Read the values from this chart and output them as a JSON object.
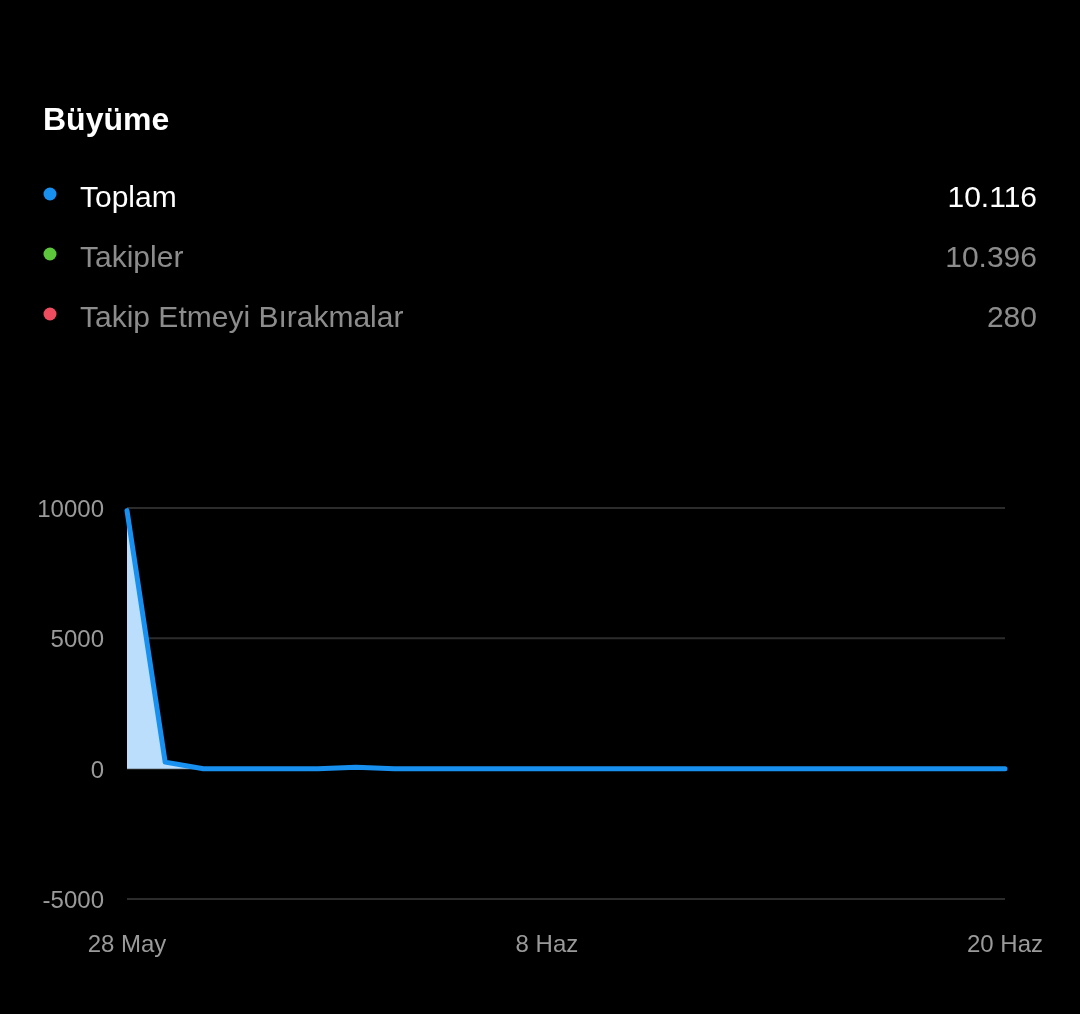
{
  "chart_data": {
    "type": "area",
    "title": "Büyüme",
    "x": [
      "--05-28",
      "--05-29",
      "--05-30",
      "--05-31",
      "--06-01",
      "--06-02",
      "--06-03",
      "--06-04",
      "--06-05",
      "--06-06",
      "--06-07",
      "--06-08",
      "--06-09",
      "--06-10",
      "--06-11",
      "--06-12",
      "--06-13",
      "--06-14",
      "--06-15",
      "--06-16",
      "--06-17",
      "--06-18",
      "--06-19",
      "--06-20"
    ],
    "series": [
      {
        "name": "Toplam",
        "color": "#1890f0",
        "values": [
          9900,
          250,
          0,
          0,
          0,
          0,
          50,
          0,
          0,
          0,
          0,
          0,
          0,
          0,
          0,
          0,
          0,
          0,
          0,
          0,
          0,
          0,
          0,
          0
        ]
      },
      {
        "name": "Takipler",
        "color": "#5cc73a",
        "values": [
          null,
          null,
          null,
          null,
          null,
          null,
          null,
          null,
          null,
          null,
          null,
          null,
          null,
          null,
          null,
          null,
          null,
          null,
          null,
          null,
          null,
          null,
          null,
          null
        ]
      },
      {
        "name": "Takip Etmeyi Bırakmalar",
        "color": "#ee4d5f",
        "values": [
          null,
          null,
          null,
          null,
          null,
          null,
          null,
          null,
          null,
          null,
          null,
          null,
          null,
          null,
          null,
          null,
          null,
          null,
          null,
          null,
          null,
          null,
          null,
          null
        ]
      }
    ],
    "annotations": [
      "10.116",
      "10.396",
      "280"
    ],
    "xlim": [
      "--05-28",
      "--06-20"
    ],
    "xticks": [
      {
        "value": "--05-28",
        "label": "28 May"
      },
      {
        "value": "--06-08",
        "label": "8 Haz"
      },
      {
        "value": "--06-20",
        "label": "20 Haz"
      }
    ],
    "ylim": [
      -5000,
      10000
    ],
    "yticks": [
      -5000,
      0,
      5000,
      10000
    ],
    "grid": "y",
    "legend": "top"
  }
}
